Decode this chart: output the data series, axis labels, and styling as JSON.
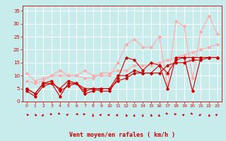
{
  "bg_color": "#c8ecec",
  "grid_color": "#ffffff",
  "line_color_dark": "#cc0000",
  "line_color_light": "#ffaaaa",
  "xlabel": "Vent moyen/en rafales ( km/h )",
  "xlim_min": -0.5,
  "xlim_max": 23.5,
  "ylim_min": 0,
  "ylim_max": 37,
  "xticks": [
    0,
    1,
    2,
    3,
    4,
    5,
    6,
    7,
    8,
    9,
    10,
    11,
    12,
    13,
    14,
    15,
    16,
    17,
    18,
    19,
    20,
    21,
    22,
    23
  ],
  "yticks": [
    0,
    5,
    10,
    15,
    20,
    25,
    30,
    35
  ],
  "series_dark": [
    [
      4,
      2,
      6,
      7,
      2,
      7,
      7,
      4,
      5,
      4,
      4,
      9,
      17,
      16,
      12,
      15,
      14,
      5,
      17,
      17,
      4,
      17,
      17,
      17
    ],
    [
      5,
      3,
      7,
      7,
      5,
      8,
      7,
      5,
      5,
      5,
      5,
      10,
      10,
      12,
      11,
      11,
      14,
      11,
      16,
      17,
      17,
      17,
      17,
      17
    ],
    [
      5,
      3,
      7,
      8,
      4,
      6,
      7,
      3,
      4,
      5,
      5,
      8,
      9,
      11,
      11,
      11,
      11,
      14,
      15,
      15,
      16,
      16,
      17,
      17
    ]
  ],
  "series_light": [
    [
      11,
      8,
      9,
      10,
      10,
      10,
      10,
      12,
      10,
      10,
      10,
      15,
      22,
      24,
      21,
      21,
      25,
      6,
      31,
      29,
      9,
      27,
      33,
      26
    ],
    [
      8,
      7,
      8,
      10,
      12,
      10,
      10,
      9,
      9,
      11,
      11,
      12,
      12,
      14,
      14,
      14,
      15,
      16,
      17,
      18,
      19,
      20,
      21,
      22
    ]
  ],
  "arrow_angles": [
    225,
    210,
    160,
    90,
    50,
    130,
    270,
    90,
    180,
    140,
    140,
    150,
    190,
    175,
    180,
    190,
    175,
    50,
    85,
    140,
    50,
    145,
    185,
    135
  ]
}
